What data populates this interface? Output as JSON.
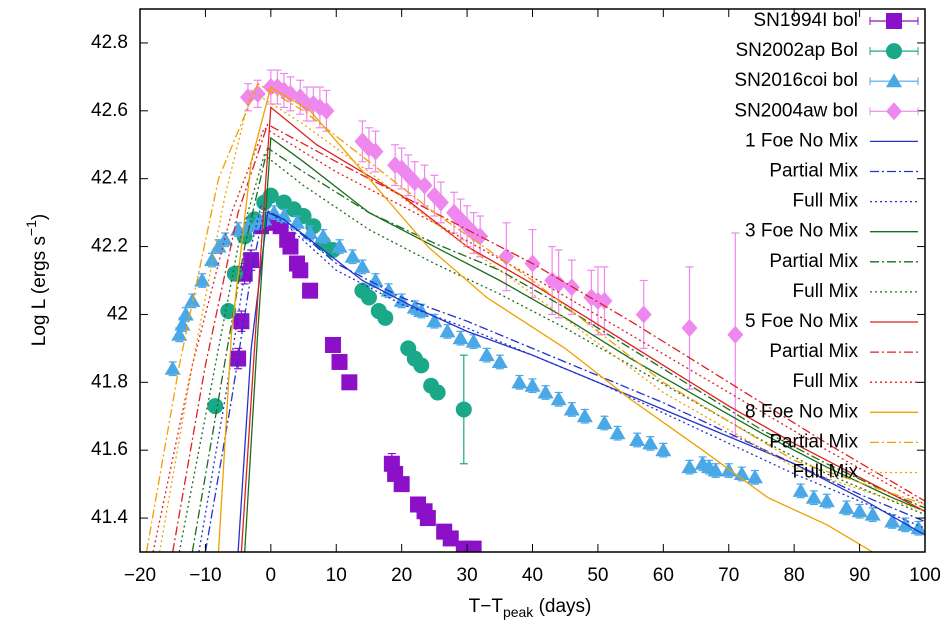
{
  "chart_data": {
    "type": "scatter",
    "xlabel": [
      "T−T",
      "peak",
      " (days)"
    ],
    "ylabel": [
      "Log L (ergs s",
      "−1",
      ")"
    ],
    "xlim": [
      -20,
      100
    ],
    "ylim": [
      41.3,
      42.9
    ],
    "xticks": [
      {
        "value": -20,
        "label": "−20"
      },
      {
        "value": -10,
        "label": "−10"
      },
      0,
      10,
      20,
      30,
      40,
      50,
      60,
      70,
      80,
      90,
      100
    ],
    "yticks": [
      41.4,
      41.6,
      41.8,
      42,
      42.2,
      42.4,
      42.6,
      42.8
    ],
    "legend": "top-right",
    "series": [
      {
        "name": "SN1994I bol",
        "color": "#8b10c8",
        "marker": "square",
        "x": [
          -5,
          -4.5,
          -4,
          -3,
          -1.5,
          0.5,
          1.5,
          2.5,
          3,
          4,
          4.5,
          6,
          9.5,
          10.5,
          12,
          18.5,
          19,
          20,
          22.5,
          23.5,
          24,
          26.5,
          27.5,
          29.5,
          31
        ],
        "values": [
          41.87,
          41.98,
          42.12,
          42.16,
          42.26,
          42.27,
          42.26,
          42.22,
          42.2,
          42.15,
          42.13,
          42.07,
          41.91,
          41.86,
          41.8,
          41.56,
          41.53,
          41.5,
          41.44,
          41.42,
          41.4,
          41.36,
          41.34,
          41.31,
          41.31
        ],
        "errors": [
          0.03,
          0.03,
          0.03,
          0.03,
          0.02,
          0.02,
          0.02,
          0.02,
          0.02,
          0.02,
          0.02,
          0.02,
          0.02,
          0.02,
          0.02,
          0.03,
          0.02,
          0.02,
          0.02,
          0.02,
          0.02,
          0.02,
          0.02,
          0.02,
          0.02
        ]
      },
      {
        "name": "SN2002ap Bol",
        "color": "#1aa888",
        "marker": "circle",
        "x": [
          -8.5,
          -6.5,
          -5.5,
          -4,
          -2.5,
          -1,
          0,
          2,
          3.5,
          5,
          6.5,
          8,
          9.5,
          14,
          15,
          16.5,
          17.5,
          21,
          22,
          23,
          24.5,
          25.5,
          29.5
        ],
        "values": [
          41.73,
          42.01,
          42.12,
          42.23,
          42.28,
          42.33,
          42.35,
          42.33,
          42.31,
          42.29,
          42.26,
          42.21,
          42.19,
          42.07,
          42.05,
          42.01,
          41.99,
          41.9,
          41.87,
          41.85,
          41.79,
          41.77,
          41.72
        ],
        "errors": [
          0.01,
          0.01,
          0.01,
          0.01,
          0.01,
          0.01,
          0.01,
          0.01,
          0.01,
          0.01,
          0.01,
          0.01,
          0.01,
          0.01,
          0.01,
          0.01,
          0.01,
          0.01,
          0.01,
          0.01,
          0.01,
          0.02,
          0.16
        ]
      },
      {
        "name": "SN2016coi bol",
        "color": "#4aa8e6",
        "marker": "triangle",
        "x": [
          -15,
          -14,
          -13.5,
          -13,
          -12,
          -10.5,
          -9,
          -8,
          -7,
          -5,
          -3.5,
          -2,
          -1,
          0.5,
          2,
          4,
          6,
          8,
          10.5,
          12.5,
          14,
          16,
          18,
          20,
          22,
          23,
          25,
          27,
          29,
          31,
          33,
          35,
          38,
          40,
          42,
          44,
          46,
          48,
          51,
          53,
          56,
          58,
          60,
          64,
          66,
          67,
          68,
          70,
          72,
          74,
          81,
          83,
          85,
          88,
          90,
          92,
          95,
          97,
          99
        ],
        "values": [
          41.84,
          41.94,
          41.97,
          42,
          42.04,
          42.1,
          42.16,
          42.2,
          42.22,
          42.25,
          42.26,
          42.27,
          42.28,
          42.3,
          42.29,
          42.27,
          42.24,
          42.23,
          42.2,
          42.17,
          42.14,
          42.1,
          42.07,
          42.04,
          42.02,
          42.01,
          41.98,
          41.95,
          41.93,
          41.92,
          41.88,
          41.86,
          41.8,
          41.79,
          41.77,
          41.75,
          41.72,
          41.7,
          41.68,
          41.65,
          41.63,
          41.62,
          41.6,
          41.55,
          41.56,
          41.55,
          41.54,
          41.54,
          41.53,
          41.52,
          41.48,
          41.46,
          41.45,
          41.43,
          41.42,
          41.41,
          41.39,
          41.38,
          41.37
        ],
        "errors": [
          0.02,
          0.02,
          0.02,
          0.02,
          0.02,
          0.02,
          0.02,
          0.02,
          0.02,
          0.02,
          0.02,
          0.02,
          0.02,
          0.02,
          0.02,
          0.02,
          0.02,
          0.02,
          0.02,
          0.02,
          0.02,
          0.02,
          0.02,
          0.02,
          0.02,
          0.02,
          0.02,
          0.02,
          0.02,
          0.02,
          0.02,
          0.02,
          0.02,
          0.02,
          0.02,
          0.02,
          0.02,
          0.02,
          0.02,
          0.02,
          0.02,
          0.02,
          0.02,
          0.02,
          0.02,
          0.02,
          0.02,
          0.02,
          0.02,
          0.02,
          0.02,
          0.02,
          0.02,
          0.02,
          0.02,
          0.02,
          0.02,
          0.02,
          0.02
        ]
      },
      {
        "name": "SN2004aw bol",
        "color": "#ee88ee",
        "marker": "diamond",
        "x": [
          -3.5,
          -2,
          0,
          1,
          2,
          3,
          4.5,
          5.5,
          6.5,
          7.5,
          8.5,
          14,
          15,
          16,
          19,
          20,
          21,
          22,
          23.5,
          25,
          26,
          28,
          29,
          30,
          31,
          32,
          36,
          40,
          43,
          44,
          46,
          49,
          50,
          51,
          57,
          64,
          71
        ],
        "values": [
          42.64,
          42.65,
          42.67,
          42.67,
          42.66,
          42.65,
          42.64,
          42.62,
          42.62,
          42.61,
          42.6,
          42.51,
          42.49,
          42.48,
          42.44,
          42.43,
          42.41,
          42.39,
          42.38,
          42.35,
          42.33,
          42.3,
          42.28,
          42.26,
          42.24,
          42.23,
          42.17,
          42.15,
          42.1,
          42.09,
          42.08,
          42.05,
          42.04,
          42.04,
          42,
          41.96,
          41.94
        ],
        "errors": [
          0.04,
          0.04,
          0.05,
          0.05,
          0.05,
          0.05,
          0.05,
          0.05,
          0.05,
          0.06,
          0.06,
          0.06,
          0.06,
          0.06,
          0.06,
          0.06,
          0.06,
          0.06,
          0.06,
          0.06,
          0.06,
          0.06,
          0.06,
          0.06,
          0.06,
          0.06,
          0.1,
          0.1,
          0.1,
          0.1,
          0.08,
          0.08,
          0.1,
          0.1,
          0.1,
          0.18,
          0.3
        ]
      },
      {
        "name": "1 Foe No Mix",
        "color": "#2233cc",
        "dash": "solid",
        "x": [
          -5,
          -3,
          -0.5,
          2,
          6,
          14,
          22,
          30,
          40,
          50,
          60,
          70,
          80,
          90,
          100
        ],
        "values": [
          41.3,
          41.9,
          42.3,
          42.28,
          42.22,
          42.1,
          42.02,
          41.95,
          41.88,
          41.8,
          41.72,
          41.64,
          41.56,
          41.46,
          41.35
        ]
      },
      {
        "name": "Partial Mix",
        "color": "#2233cc",
        "dash": "dashdot",
        "x": [
          -10,
          -6,
          -3,
          -1,
          2,
          10,
          20,
          30,
          40,
          50,
          60,
          70,
          80,
          90,
          100
        ],
        "values": [
          41.3,
          41.75,
          42.12,
          42.31,
          42.28,
          42.15,
          42.05,
          41.98,
          41.9,
          41.82,
          41.74,
          41.65,
          41.56,
          41.47,
          41.39
        ]
      },
      {
        "name": "Full Mix",
        "color": "#2233cc",
        "dash": "dotted",
        "x": [
          -11,
          -7,
          -4,
          -1.5,
          2,
          10,
          20,
          30,
          40,
          50,
          60,
          70,
          80,
          90,
          100
        ],
        "values": [
          41.3,
          41.75,
          42.12,
          42.32,
          42.27,
          42.13,
          42.03,
          41.96,
          41.88,
          41.8,
          41.71,
          41.62,
          41.53,
          41.45,
          41.37
        ]
      },
      {
        "name": "3 Foe No Mix",
        "color": "#1a6e1a",
        "dash": "solid",
        "x": [
          -4,
          -2,
          0,
          5,
          15,
          25,
          35,
          45,
          55,
          65,
          75,
          85,
          95,
          100
        ],
        "values": [
          41.3,
          41.95,
          42.52,
          42.45,
          42.3,
          42.2,
          42.1,
          41.99,
          41.87,
          41.76,
          41.65,
          41.55,
          41.46,
          41.42
        ]
      },
      {
        "name": "Partial Mix",
        "color": "#1a6e1a",
        "dash": "dashdot",
        "x": [
          -12,
          -8,
          -4,
          -0.5,
          5,
          15,
          25,
          35,
          45,
          55,
          65,
          75,
          85,
          95,
          100
        ],
        "values": [
          41.3,
          41.75,
          42.2,
          42.49,
          42.42,
          42.3,
          42.21,
          42.13,
          42.02,
          41.9,
          41.78,
          41.66,
          41.56,
          41.47,
          41.43
        ]
      },
      {
        "name": "Full Mix",
        "color": "#1a6e1a",
        "dash": "dotted",
        "x": [
          -14,
          -9,
          -5,
          -1,
          5,
          15,
          25,
          35,
          45,
          55,
          65,
          75,
          85,
          95,
          100
        ],
        "values": [
          41.3,
          41.8,
          42.2,
          42.47,
          42.38,
          42.25,
          42.15,
          42.06,
          41.96,
          41.85,
          41.74,
          41.63,
          41.53,
          41.45,
          41.41
        ]
      },
      {
        "name": "5 Foe No Mix",
        "color": "#e02020",
        "dash": "solid",
        "x": [
          -4.5,
          -2,
          0,
          7,
          20,
          30,
          40,
          50,
          60,
          70,
          80,
          90,
          100
        ],
        "values": [
          41.3,
          42.05,
          42.61,
          42.5,
          42.35,
          42.2,
          42.09,
          41.97,
          41.85,
          41.73,
          41.62,
          41.52,
          41.42
        ]
      },
      {
        "name": "Partial Mix",
        "color": "#e02020",
        "dash": "dashdot",
        "x": [
          -15,
          -10,
          -5,
          -0.5,
          10,
          25,
          40,
          55,
          70,
          85,
          100
        ],
        "values": [
          41.3,
          41.85,
          42.3,
          42.56,
          42.45,
          42.3,
          42.15,
          41.98,
          41.8,
          41.62,
          41.45
        ]
      },
      {
        "name": "Full Mix",
        "color": "#e02020",
        "dash": "dotted",
        "x": [
          -18,
          -12,
          -6,
          -1,
          10,
          25,
          40,
          55,
          70,
          85,
          100
        ],
        "values": [
          41.3,
          41.85,
          42.3,
          42.55,
          42.42,
          42.27,
          42.11,
          41.94,
          41.77,
          41.6,
          41.44
        ]
      },
      {
        "name": "8 Foe No Mix",
        "color": "#f0a000",
        "dash": "solid",
        "x": [
          -8,
          -6,
          -3,
          0,
          6,
          15,
          24,
          33,
          45,
          55,
          66,
          76,
          85,
          92
        ],
        "values": [
          41.3,
          41.95,
          42.45,
          42.67,
          42.6,
          42.4,
          42.2,
          42.05,
          41.9,
          41.75,
          41.6,
          41.46,
          41.38,
          41.3
        ]
      },
      {
        "name": "Partial Mix",
        "color": "#f0a000",
        "dash": "dashdot",
        "x": [
          -19,
          -14,
          -8,
          -2,
          5,
          15,
          25,
          40,
          60,
          80,
          100
        ],
        "values": [
          41.3,
          41.85,
          42.4,
          42.68,
          42.6,
          42.45,
          42.3,
          42.1,
          41.8,
          41.57,
          41.44
        ]
      },
      {
        "name": "Full Mix",
        "color": "#f0a000",
        "dash": "dotted",
        "x": [
          -17,
          -12,
          -7,
          -3,
          5,
          15,
          25,
          40,
          60,
          80,
          100
        ],
        "values": [
          41.3,
          41.85,
          42.35,
          42.66,
          42.56,
          42.42,
          42.27,
          42.06,
          41.77,
          41.55,
          41.42
        ]
      }
    ]
  }
}
